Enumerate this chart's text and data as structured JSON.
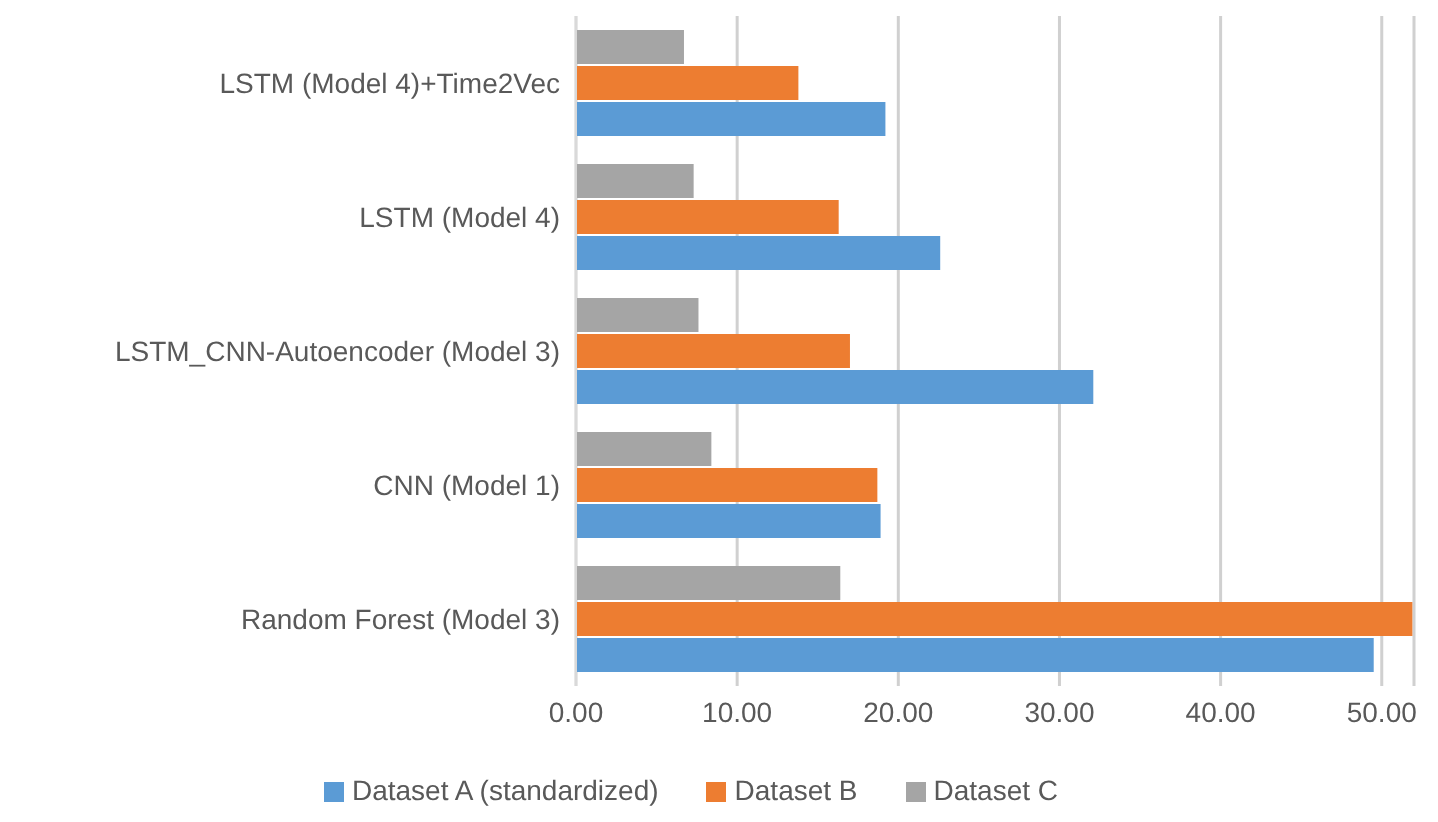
{
  "chart_data": {
    "type": "bar",
    "orientation": "horizontal",
    "categories": [
      "LSTM (Model 4)+Time2Vec",
      "LSTM (Model 4)",
      "LSTM_CNN-Autoencoder (Model 3)",
      "CNN (Model 1)",
      "Random Forest (Model 3)"
    ],
    "series": [
      {
        "name": "Dataset C",
        "color": "#a5a5a5",
        "values": [
          6.7,
          7.3,
          7.6,
          8.4,
          16.4
        ]
      },
      {
        "name": "Dataset B",
        "color": "#ed7d31",
        "values": [
          13.8,
          16.3,
          17.0,
          18.7,
          51.9
        ]
      },
      {
        "name": "Dataset A (standardized)",
        "color": "#5b9bd5",
        "values": [
          19.2,
          22.6,
          32.1,
          18.9,
          49.5
        ]
      }
    ],
    "xlim": [
      0,
      52
    ],
    "xticks": [
      {
        "value": 0,
        "label": "0.00"
      },
      {
        "value": 10,
        "label": "10.00"
      },
      {
        "value": 20,
        "label": "20.00"
      },
      {
        "value": 30,
        "label": "30.00"
      },
      {
        "value": 40,
        "label": "40.00"
      },
      {
        "value": 50,
        "label": "50.00"
      }
    ],
    "grid": "x",
    "legend": "bottom"
  }
}
